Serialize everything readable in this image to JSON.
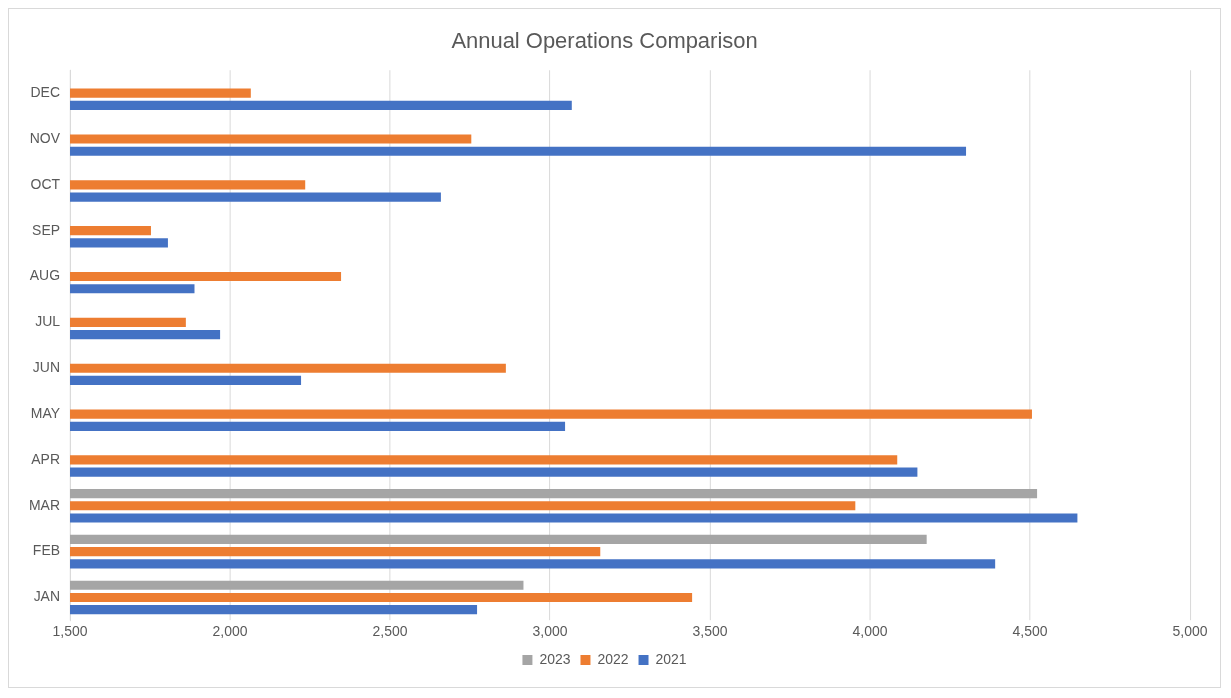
{
  "chart_data": {
    "type": "bar",
    "orientation": "horizontal",
    "title": "Annual Operations Comparison",
    "categories": [
      "DEC",
      "NOV",
      "OCT",
      "SEP",
      "AUG",
      "JUL",
      "JUN",
      "MAY",
      "APR",
      "MAR",
      "FEB",
      "JAN"
    ],
    "series": [
      {
        "name": "2023",
        "color": "#a5a5a5",
        "values": [
          null,
          null,
          null,
          null,
          null,
          null,
          null,
          null,
          null,
          4522,
          4177,
          2917
        ]
      },
      {
        "name": "2022",
        "color": "#ed7d31",
        "values": [
          2065,
          2754,
          2235,
          1753,
          2347,
          1862,
          2862,
          4506,
          4085,
          3954,
          3157,
          3444
        ]
      },
      {
        "name": "2021",
        "color": "#4472c4",
        "values": [
          3068,
          4300,
          2659,
          1806,
          1889,
          1969,
          2222,
          3047,
          4148,
          4648,
          4391,
          2772
        ]
      }
    ],
    "xlim": [
      1500,
      5000
    ],
    "xticks": [
      {
        "value": 1500,
        "label": "1,500"
      },
      {
        "value": 2000,
        "label": "2,000"
      },
      {
        "value": 2500,
        "label": "2,500"
      },
      {
        "value": 3000,
        "label": "3,000"
      },
      {
        "value": 3500,
        "label": "3,500"
      },
      {
        "value": 4000,
        "label": "4,000"
      },
      {
        "value": 4500,
        "label": "4,500"
      },
      {
        "value": 5000,
        "label": "5,000"
      }
    ],
    "grid": "x",
    "legend": "bottom"
  }
}
